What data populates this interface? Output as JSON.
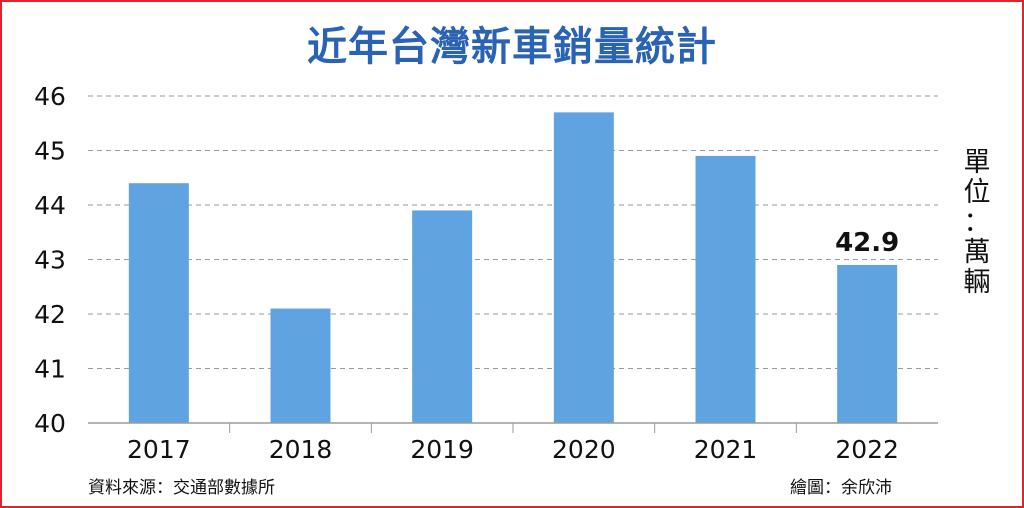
{
  "chart_data": {
    "type": "bar",
    "title": "近年台灣新車銷量統計",
    "categories": [
      "2017",
      "2018",
      "2019",
      "2020",
      "2021",
      "2022"
    ],
    "values": [
      44.4,
      42.1,
      43.9,
      45.7,
      44.9,
      42.9
    ],
    "ylim": [
      40,
      46
    ],
    "yticks": [
      "40",
      "41",
      "42",
      "43",
      "44",
      "45",
      "46"
    ],
    "data_labels": [
      "",
      "",
      "",
      "",
      "",
      "42.9"
    ],
    "unit_label": "單位：萬輛",
    "grid": true,
    "bar_color": "#5fa4e0",
    "title_color": "#2a63b4",
    "border_color": "#e3232b"
  },
  "footer": {
    "source": "資料來源：交通部數據所",
    "credit": "繪圖：余欣沛"
  }
}
